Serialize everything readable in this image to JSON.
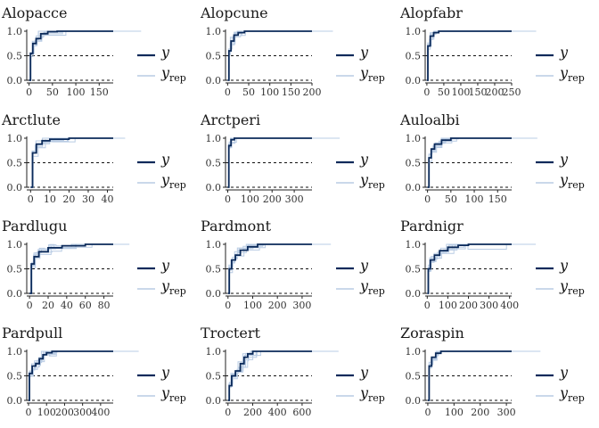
{
  "colors": {
    "y": "#0b2a5a",
    "yrep": "#b9cce4",
    "axis": "#222222",
    "ref": "#111111"
  },
  "legend": {
    "y_label": "y",
    "yrep_label": "y",
    "yrep_sub": "rep"
  },
  "chart_data": [
    {
      "type": "line",
      "title": "Alopacce",
      "xlim": [
        -5,
        180
      ],
      "ylim": [
        0,
        1
      ],
      "xticks": [
        "0",
        "50",
        "100",
        "150"
      ],
      "xtick_values": [
        0,
        50,
        100,
        150
      ],
      "yticks": [
        "0.0",
        "0.5",
        "1.0"
      ],
      "reference_lines": [
        0,
        0.5
      ],
      "series": [
        {
          "name": "y",
          "x": [
            0,
            3,
            8,
            15,
            25,
            40,
            60,
            180
          ],
          "values": [
            0,
            0.55,
            0.75,
            0.85,
            0.95,
            0.99,
            1.0,
            1.0
          ]
        }
      ]
    },
    {
      "type": "line",
      "title": "Alopcune",
      "xlim": [
        -5,
        200
      ],
      "ylim": [
        0,
        1
      ],
      "xticks": [
        "0",
        "50",
        "100",
        "150",
        "200"
      ],
      "xtick_values": [
        0,
        50,
        100,
        150,
        200
      ],
      "yticks": [
        "0.0",
        "0.5",
        "1.0"
      ],
      "reference_lines": [
        0,
        0.5
      ],
      "series": [
        {
          "name": "y",
          "x": [
            0,
            3,
            8,
            15,
            25,
            40,
            200
          ],
          "values": [
            0,
            0.6,
            0.8,
            0.92,
            0.97,
            1.0,
            1.0
          ]
        }
      ]
    },
    {
      "type": "line",
      "title": "Alopfabr",
      "xlim": [
        -5,
        250
      ],
      "ylim": [
        0,
        1
      ],
      "xticks": [
        "0",
        "50",
        "100",
        "150",
        "200",
        "250"
      ],
      "xtick_values": [
        0,
        50,
        100,
        150,
        200,
        250
      ],
      "yticks": [
        "0.0",
        "0.5",
        "1.0"
      ],
      "reference_lines": [
        0,
        0.5
      ],
      "series": [
        {
          "name": "y",
          "x": [
            0,
            3,
            10,
            20,
            35,
            250
          ],
          "values": [
            0,
            0.7,
            0.9,
            0.97,
            1.0,
            1.0
          ]
        }
      ]
    },
    {
      "type": "line",
      "title": "Arctlute",
      "xlim": [
        -2,
        43
      ],
      "ylim": [
        0,
        1
      ],
      "xticks": [
        "0",
        "10",
        "20",
        "30",
        "40"
      ],
      "xtick_values": [
        0,
        10,
        20,
        30,
        40
      ],
      "yticks": [
        "0.0",
        "0.5",
        "1.0"
      ],
      "reference_lines": [
        0,
        0.5
      ],
      "series": [
        {
          "name": "y",
          "x": [
            0,
            1,
            3,
            6,
            10,
            20,
            43
          ],
          "values": [
            0,
            0.7,
            0.88,
            0.95,
            0.98,
            1.0,
            1.0
          ]
        }
      ]
    },
    {
      "type": "line",
      "title": "Arctperi",
      "xlim": [
        -10,
        380
      ],
      "ylim": [
        0,
        1
      ],
      "xticks": [
        "0",
        "100",
        "200",
        "300"
      ],
      "xtick_values": [
        0,
        100,
        200,
        300
      ],
      "yticks": [
        "0.0",
        "0.5",
        "1.0"
      ],
      "reference_lines": [
        0,
        0.5
      ],
      "series": [
        {
          "name": "y",
          "x": [
            0,
            5,
            15,
            30,
            380
          ],
          "values": [
            0,
            0.85,
            0.97,
            1.0,
            1.0
          ]
        }
      ]
    },
    {
      "type": "line",
      "title": "Auloalbi",
      "xlim": [
        -5,
        180
      ],
      "ylim": [
        0,
        1
      ],
      "xticks": [
        "0",
        "50",
        "100",
        "150"
      ],
      "xtick_values": [
        0,
        50,
        100,
        150
      ],
      "yticks": [
        "0.0",
        "0.5",
        "1.0"
      ],
      "reference_lines": [
        0,
        0.5
      ],
      "series": [
        {
          "name": "y",
          "x": [
            0,
            3,
            8,
            15,
            30,
            50,
            180
          ],
          "values": [
            0,
            0.6,
            0.78,
            0.88,
            0.96,
            1.0,
            1.0
          ]
        }
      ]
    },
    {
      "type": "line",
      "title": "Pardlugu",
      "xlim": [
        -3,
        90
      ],
      "ylim": [
        0,
        1
      ],
      "xticks": [
        "0",
        "20",
        "40",
        "60",
        "80"
      ],
      "xtick_values": [
        0,
        20,
        40,
        60,
        80
      ],
      "yticks": [
        "0.0",
        "0.5",
        "1.0"
      ],
      "reference_lines": [
        0,
        0.5
      ],
      "series": [
        {
          "name": "y",
          "x": [
            0,
            2,
            5,
            10,
            20,
            35,
            60,
            90
          ],
          "values": [
            0,
            0.6,
            0.75,
            0.85,
            0.93,
            0.97,
            1.0,
            1.0
          ]
        }
      ]
    },
    {
      "type": "line",
      "title": "Pardmont",
      "xlim": [
        -10,
        340
      ],
      "ylim": [
        0,
        1
      ],
      "xticks": [
        "0",
        "100",
        "200",
        "300"
      ],
      "xtick_values": [
        0,
        100,
        200,
        300
      ],
      "yticks": [
        "0.0",
        "0.5",
        "1.0"
      ],
      "reference_lines": [
        0,
        0.5
      ],
      "series": [
        {
          "name": "y",
          "x": [
            0,
            5,
            15,
            30,
            50,
            80,
            120,
            340
          ],
          "values": [
            0,
            0.5,
            0.68,
            0.78,
            0.88,
            0.95,
            1.0,
            1.0
          ]
        }
      ]
    },
    {
      "type": "line",
      "title": "Pardnigr",
      "xlim": [
        -10,
        410
      ],
      "ylim": [
        0,
        1
      ],
      "xticks": [
        "0",
        "100",
        "200",
        "300",
        "400"
      ],
      "xtick_values": [
        0,
        100,
        200,
        300,
        400
      ],
      "yticks": [
        "0.0",
        "0.5",
        "1.0"
      ],
      "reference_lines": [
        0,
        0.5
      ],
      "series": [
        {
          "name": "y",
          "x": [
            0,
            5,
            15,
            35,
            60,
            100,
            150,
            200,
            410
          ],
          "values": [
            0,
            0.5,
            0.68,
            0.78,
            0.87,
            0.94,
            0.98,
            1.0,
            1.0
          ]
        }
      ]
    },
    {
      "type": "line",
      "title": "Pardpull",
      "xlim": [
        -10,
        470
      ],
      "ylim": [
        0,
        1
      ],
      "xticks": [
        "0",
        "100",
        "200",
        "300",
        "400"
      ],
      "xtick_values": [
        0,
        100,
        200,
        300,
        400
      ],
      "yticks": [
        "0.0",
        "0.5",
        "1.0"
      ],
      "reference_lines": [
        0,
        0.5
      ],
      "series": [
        {
          "name": "y",
          "x": [
            0,
            5,
            20,
            40,
            60,
            80,
            100,
            130,
            470
          ],
          "values": [
            0,
            0.55,
            0.7,
            0.75,
            0.85,
            0.93,
            0.97,
            1.0,
            1.0
          ]
        }
      ]
    },
    {
      "type": "line",
      "title": "Troctert",
      "xlim": [
        -20,
        680
      ],
      "ylim": [
        0,
        1
      ],
      "xticks": [
        "0",
        "200",
        "400",
        "600"
      ],
      "xtick_values": [
        0,
        200,
        400,
        600
      ],
      "yticks": [
        "0.0",
        "0.5",
        "1.0"
      ],
      "reference_lines": [
        0,
        0.5
      ],
      "series": [
        {
          "name": "y",
          "x": [
            0,
            10,
            30,
            60,
            100,
            130,
            160,
            200,
            680
          ],
          "values": [
            0,
            0.3,
            0.5,
            0.6,
            0.75,
            0.88,
            0.95,
            1.0,
            1.0
          ]
        }
      ]
    },
    {
      "type": "line",
      "title": "Zoraspin",
      "xlim": [
        -10,
        320
      ],
      "ylim": [
        0,
        1
      ],
      "xticks": [
        "0",
        "100",
        "200",
        "300"
      ],
      "xtick_values": [
        0,
        100,
        200,
        300
      ],
      "yticks": [
        "0.0",
        "0.5",
        "1.0"
      ],
      "reference_lines": [
        0,
        0.5
      ],
      "series": [
        {
          "name": "y",
          "x": [
            0,
            5,
            15,
            30,
            50,
            320
          ],
          "values": [
            0,
            0.7,
            0.88,
            0.96,
            1.0,
            1.0
          ]
        }
      ]
    }
  ]
}
